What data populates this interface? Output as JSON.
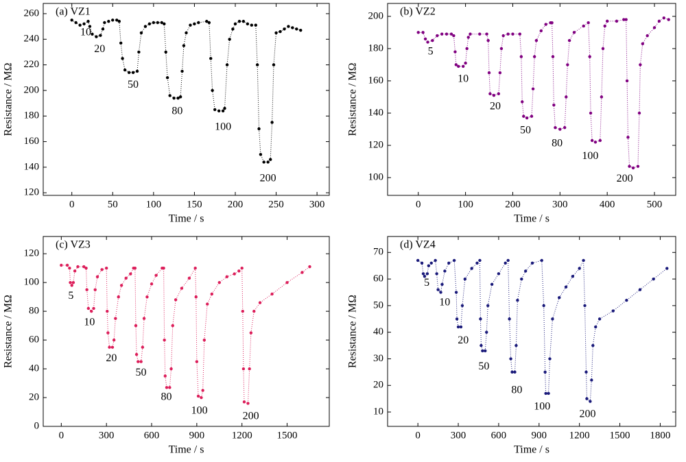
{
  "chart_data": [
    {
      "type": "line",
      "title": "(a) VZ1",
      "xlabel": "Time / s",
      "ylabel": "Resistance / MΩ",
      "color": "#000000",
      "xlim": [
        -35,
        315
      ],
      "ylim": [
        118,
        268
      ],
      "xticks": [
        0,
        50,
        100,
        150,
        200,
        250,
        300
      ],
      "yticks": [
        120,
        140,
        160,
        180,
        200,
        220,
        240,
        260
      ],
      "x": [
        0,
        5,
        10,
        15,
        20,
        22,
        25,
        30,
        35,
        38,
        40,
        45,
        50,
        55,
        58,
        60,
        62,
        65,
        70,
        75,
        80,
        82,
        85,
        90,
        95,
        100,
        105,
        110,
        113,
        115,
        117,
        120,
        125,
        130,
        133,
        135,
        137,
        140,
        145,
        150,
        155,
        165,
        168,
        170,
        172,
        175,
        180,
        185,
        187,
        190,
        193,
        197,
        200,
        205,
        210,
        215,
        220,
        225,
        227,
        229,
        231,
        235,
        240,
        243,
        245,
        247,
        250,
        255,
        260,
        265,
        270,
        275,
        280
      ],
      "values": [
        255,
        253,
        251,
        252,
        254,
        250,
        244,
        242,
        243,
        248,
        253,
        254,
        255,
        255,
        254,
        237,
        225,
        216,
        214,
        214,
        215,
        230,
        245,
        250,
        252,
        253,
        253,
        253,
        252,
        230,
        210,
        196,
        194,
        194,
        195,
        215,
        235,
        245,
        251,
        252,
        253,
        254,
        253,
        225,
        200,
        185,
        184,
        184,
        186,
        220,
        240,
        248,
        252,
        254,
        254,
        252,
        251,
        251,
        220,
        170,
        150,
        144,
        144,
        146,
        175,
        220,
        245,
        246,
        248,
        250,
        249,
        248,
        247
      ],
      "annotations": [
        {
          "text": "10",
          "x": 17,
          "y": 245
        },
        {
          "text": "20",
          "x": 34,
          "y": 232
        },
        {
          "text": "50",
          "x": 75,
          "y": 204
        },
        {
          "text": "80",
          "x": 129,
          "y": 183.5
        },
        {
          "text": "100",
          "x": 185,
          "y": 171
        },
        {
          "text": "200",
          "x": 240,
          "y": 131
        }
      ]
    },
    {
      "type": "line",
      "title": "(b) VZ2",
      "xlabel": "Time / s",
      "ylabel": "Resistance / MΩ",
      "color": "#800080",
      "xlim": [
        -65,
        545
      ],
      "ylim": [
        89,
        208
      ],
      "xticks": [
        0,
        100,
        200,
        300,
        400,
        500
      ],
      "yticks": [
        100,
        120,
        140,
        160,
        180,
        200
      ],
      "x": [
        0,
        10,
        15,
        20,
        30,
        40,
        50,
        60,
        70,
        75,
        78,
        80,
        85,
        95,
        100,
        103,
        106,
        110,
        130,
        145,
        148,
        150,
        152,
        160,
        170,
        173,
        176,
        180,
        190,
        200,
        215,
        218,
        220,
        223,
        230,
        240,
        243,
        246,
        250,
        260,
        270,
        280,
        283,
        285,
        287,
        290,
        300,
        310,
        313,
        316,
        320,
        330,
        350,
        360,
        363,
        365,
        368,
        375,
        385,
        388,
        391,
        395,
        400,
        420,
        435,
        440,
        442,
        444,
        447,
        455,
        465,
        468,
        470,
        475,
        485,
        500,
        510,
        520,
        530
      ],
      "values": [
        190,
        190,
        186,
        184,
        185,
        188,
        189,
        189,
        189,
        188,
        178,
        170,
        169,
        169,
        171,
        180,
        187,
        189,
        189,
        189,
        185,
        165,
        152,
        151,
        152,
        165,
        180,
        188,
        189,
        189,
        189,
        175,
        147,
        138,
        137,
        138,
        155,
        175,
        185,
        191,
        195,
        196,
        196,
        175,
        145,
        131,
        130,
        131,
        150,
        170,
        185,
        190,
        194,
        196,
        175,
        140,
        123,
        122,
        123,
        150,
        180,
        194,
        197,
        197,
        198,
        198,
        160,
        125,
        107,
        106,
        107,
        140,
        170,
        183,
        188,
        193,
        197,
        199,
        198
      ],
      "annotations": [
        {
          "text": "5",
          "x": 26,
          "y": 178
        },
        {
          "text": "10",
          "x": 95,
          "y": 161
        },
        {
          "text": "20",
          "x": 163,
          "y": 144
        },
        {
          "text": "50",
          "x": 227,
          "y": 129
        },
        {
          "text": "80",
          "x": 294,
          "y": 121
        },
        {
          "text": "100",
          "x": 364,
          "y": 113
        },
        {
          "text": "200",
          "x": 437,
          "y": 99
        }
      ]
    },
    {
      "type": "line",
      "title": "(c) VZ3",
      "xlabel": "Time / s",
      "ylabel": "Resistance / MΩ",
      "color": "#dc1e5a",
      "xlim": [
        -120,
        1780
      ],
      "ylim": [
        0,
        132
      ],
      "xticks": [
        0,
        300,
        600,
        900,
        1200,
        1500
      ],
      "yticks": [
        0,
        20,
        40,
        60,
        80,
        100,
        120
      ],
      "x": [
        0,
        40,
        55,
        60,
        70,
        80,
        90,
        110,
        150,
        165,
        170,
        180,
        200,
        215,
        225,
        240,
        270,
        300,
        305,
        310,
        320,
        340,
        350,
        360,
        380,
        400,
        430,
        460,
        480,
        490,
        495,
        500,
        510,
        530,
        540,
        550,
        570,
        600,
        630,
        670,
        680,
        685,
        690,
        700,
        720,
        730,
        740,
        760,
        800,
        850,
        890,
        895,
        900,
        910,
        930,
        940,
        950,
        970,
        1000,
        1050,
        1100,
        1150,
        1180,
        1200,
        1205,
        1210,
        1215,
        1240,
        1250,
        1260,
        1280,
        1320,
        1400,
        1500,
        1600,
        1650
      ],
      "values": [
        112,
        112,
        110,
        100,
        98,
        100,
        108,
        111,
        111,
        110,
        95,
        82,
        80,
        82,
        95,
        104,
        109,
        110,
        80,
        65,
        55,
        55,
        60,
        75,
        90,
        98,
        103,
        106,
        110,
        110,
        70,
        50,
        45,
        45,
        55,
        75,
        90,
        99,
        105,
        110,
        110,
        60,
        35,
        27,
        27,
        40,
        70,
        88,
        96,
        103,
        110,
        90,
        45,
        21,
        20,
        25,
        60,
        85,
        92,
        100,
        104,
        106,
        108,
        110,
        80,
        40,
        17,
        16,
        40,
        65,
        80,
        86,
        92,
        100,
        107,
        111
      ],
      "annotations": [
        {
          "text": "5",
          "x": 64,
          "y": 90.5
        },
        {
          "text": "10",
          "x": 187,
          "y": 72
        },
        {
          "text": "20",
          "x": 333,
          "y": 47
        },
        {
          "text": "50",
          "x": 529,
          "y": 37
        },
        {
          "text": "80",
          "x": 698,
          "y": 20
        },
        {
          "text": "100",
          "x": 917,
          "y": 10.5
        },
        {
          "text": "200",
          "x": 1259,
          "y": 6.7
        }
      ]
    },
    {
      "type": "line",
      "title": "(d) VZ4",
      "xlabel": "Time / s",
      "ylabel": "Resistance / MΩ",
      "color": "#1a1a7a",
      "xlim": [
        -225,
        1915
      ],
      "ylim": [
        4.6,
        76
      ],
      "xticks": [
        0,
        300,
        600,
        900,
        1200,
        1500,
        1800
      ],
      "yticks": [
        10,
        20,
        30,
        40,
        50,
        60,
        70
      ],
      "x": [
        0,
        30,
        40,
        50,
        70,
        80,
        100,
        130,
        140,
        150,
        170,
        180,
        200,
        230,
        270,
        285,
        290,
        300,
        320,
        330,
        350,
        400,
        440,
        460,
        465,
        470,
        480,
        500,
        510,
        520,
        550,
        600,
        650,
        670,
        680,
        690,
        700,
        720,
        730,
        740,
        770,
        800,
        850,
        920,
        935,
        945,
        950,
        970,
        980,
        1000,
        1050,
        1100,
        1150,
        1200,
        1230,
        1240,
        1250,
        1255,
        1280,
        1290,
        1300,
        1320,
        1350,
        1450,
        1550,
        1650,
        1750,
        1850
      ],
      "values": [
        67,
        66,
        62,
        61,
        62,
        65,
        66,
        67,
        62,
        56,
        55,
        58,
        63,
        66,
        67,
        55,
        45,
        42,
        42,
        50,
        60,
        64,
        66,
        67,
        45,
        35,
        33,
        33,
        40,
        50,
        58,
        62,
        66,
        67,
        45,
        30,
        25,
        25,
        35,
        52,
        60,
        63,
        66,
        67,
        50,
        25,
        17,
        17,
        30,
        45,
        53,
        57,
        61,
        64,
        67,
        50,
        25,
        15,
        14,
        22,
        35,
        42,
        45,
        48,
        52,
        56,
        60,
        64
      ],
      "annotations": [
        {
          "text": "5",
          "x": 66,
          "y": 58.4
        },
        {
          "text": "10",
          "x": 199,
          "y": 51
        },
        {
          "text": "20",
          "x": 337,
          "y": 36.8
        },
        {
          "text": "50",
          "x": 490,
          "y": 27
        },
        {
          "text": "80",
          "x": 735,
          "y": 18
        },
        {
          "text": "100",
          "x": 923,
          "y": 11.8
        },
        {
          "text": "200",
          "x": 1260,
          "y": 9
        }
      ]
    }
  ]
}
